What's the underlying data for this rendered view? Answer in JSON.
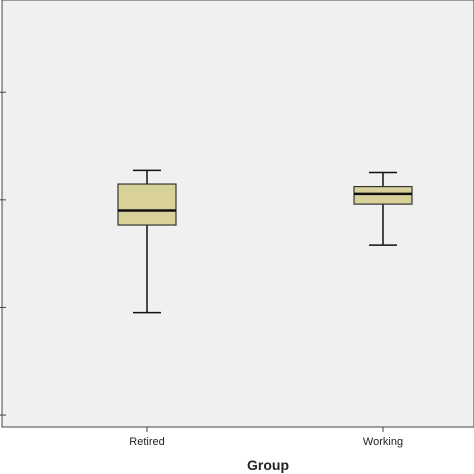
{
  "chart_data": {
    "type": "boxplot",
    "xlabel": "Group",
    "ylabel": "",
    "categories": [
      "Retired",
      "Working"
    ],
    "boxes": [
      {
        "category": "Retired",
        "whisker_low": 26.8,
        "q1": 47.3,
        "median": 50.7,
        "q3": 56.9,
        "whisker_high": 60.1
      },
      {
        "category": "Working",
        "whisker_low": 42.6,
        "q1": 52.2,
        "median": 54.6,
        "q3": 56.3,
        "whisker_high": 59.6
      }
    ],
    "ylim": [
      0,
      100
    ],
    "yticks": [
      2.8,
      28.0,
      53.2,
      78.4,
      103.6
    ],
    "grid": false,
    "colors": {
      "plot_background": "#f0f0f0",
      "box_fill": "#d9d19a",
      "box_stroke": "#333333",
      "median": "#111111",
      "whisker": "#111111"
    }
  }
}
